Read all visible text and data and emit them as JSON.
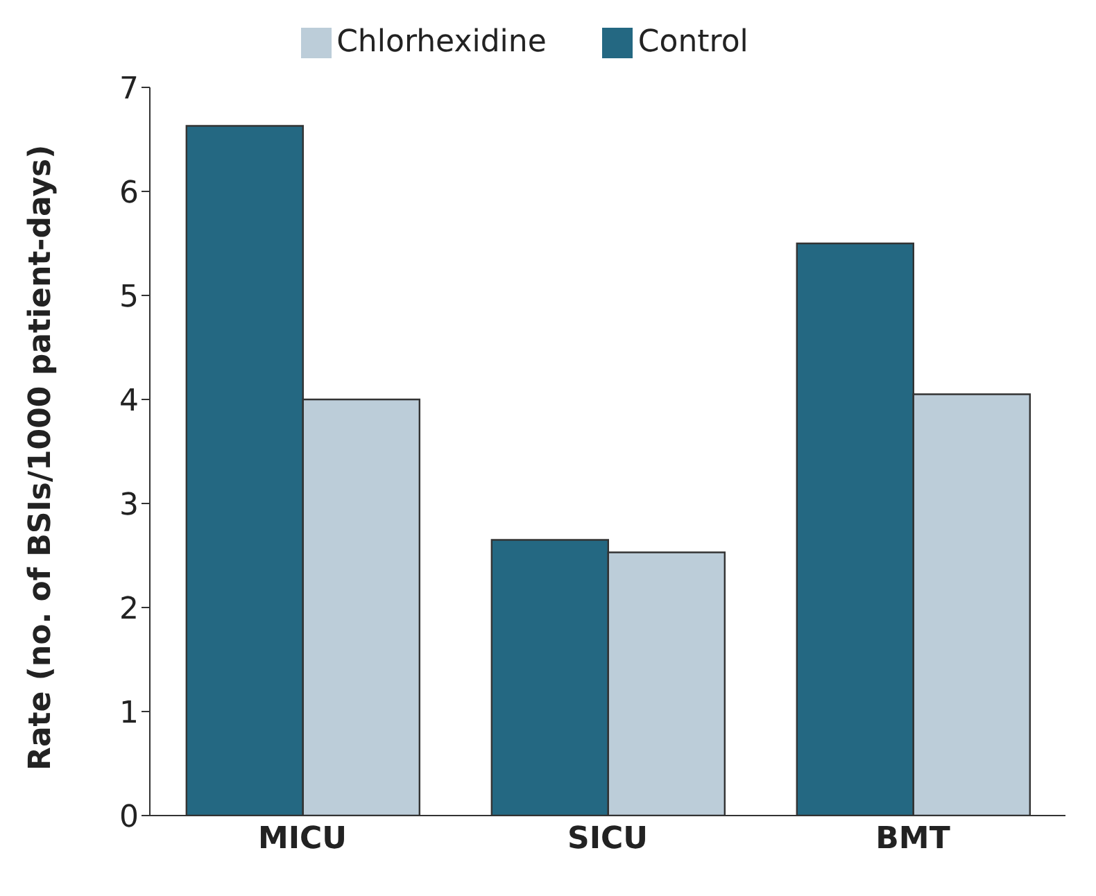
{
  "chart_data": {
    "type": "bar",
    "ylabel": "Rate (no. of BSIs/1000 patient-days)",
    "categories": [
      "MICU",
      "SICU",
      "BMT"
    ],
    "series": [
      {
        "name": "Control",
        "color": "#246882",
        "values": [
          6.63,
          2.65,
          5.5
        ]
      },
      {
        "name": "Chlorhexidine",
        "color": "#bccdd9",
        "values": [
          4.0,
          2.53,
          4.05
        ]
      }
    ],
    "ylim": [
      0,
      7
    ],
    "yticks": [
      0,
      1,
      2,
      3,
      4,
      5,
      6,
      7
    ],
    "grid": false,
    "legend": "top"
  }
}
